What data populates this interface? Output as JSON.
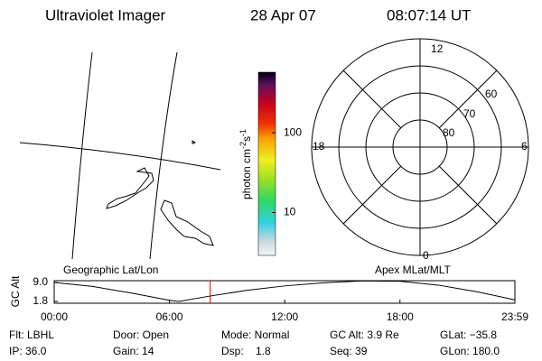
{
  "header": {
    "title": "Ultraviolet Imager",
    "date": "28 Apr 07",
    "time": "08:07:14 UT"
  },
  "colorbar": {
    "label_parts": [
      "photon cm",
      "-2",
      "s",
      "-1"
    ],
    "log": true,
    "lim": [
      2.9,
      575
    ],
    "ticks": [
      10,
      100
    ]
  },
  "polar": {
    "mlt_labels": [
      "12",
      "6",
      "0",
      "18"
    ],
    "lat_labels": [
      "60",
      "70",
      "80"
    ]
  },
  "map_labels": {
    "left": "Geographic Lat/Lon",
    "right": "Apex MLat/MLT"
  },
  "chart_data": {
    "type": "line",
    "y_label": "GC Alt",
    "x": [
      0,
      2,
      4,
      6,
      6.5,
      8,
      10,
      12,
      14,
      16,
      18,
      20,
      22,
      23.983
    ],
    "series": [
      {
        "color": "#000000",
        "values": [
          9.0,
          7.5,
          5.0,
          2.2,
          1.8,
          3.7,
          6.0,
          7.7,
          8.9,
          9.6,
          9.5,
          8.0,
          5.5,
          2.4
        ]
      }
    ],
    "xlim": [
      0,
      23.983
    ],
    "ylim": [
      1.1,
      9.7
    ],
    "xticks": [
      {
        "value": 0,
        "label": "00:00"
      },
      {
        "value": 6,
        "label": "06:00"
      },
      {
        "value": 12,
        "label": "12:00"
      },
      {
        "value": 18,
        "label": "18:00"
      },
      {
        "value": 23.983,
        "label": "23:59"
      }
    ],
    "yticks": [
      {
        "value": 1.8,
        "label": "1.8"
      },
      {
        "value": 9.0,
        "label": "9.0"
      }
    ],
    "marker_x": 8.12,
    "marker_color": "#e00000"
  },
  "status": {
    "rows": [
      [
        "Flt: LBHL",
        "Door: Open",
        "Mode: Normal",
        "GC Alt: 3.9 Re",
        "GLat: −35.8"
      ],
      [
        "IP: 36.0",
        "Gain: 14",
        "Dsp:    1.8",
        "Seq: 39",
        "GLon: 180.0"
      ]
    ]
  }
}
